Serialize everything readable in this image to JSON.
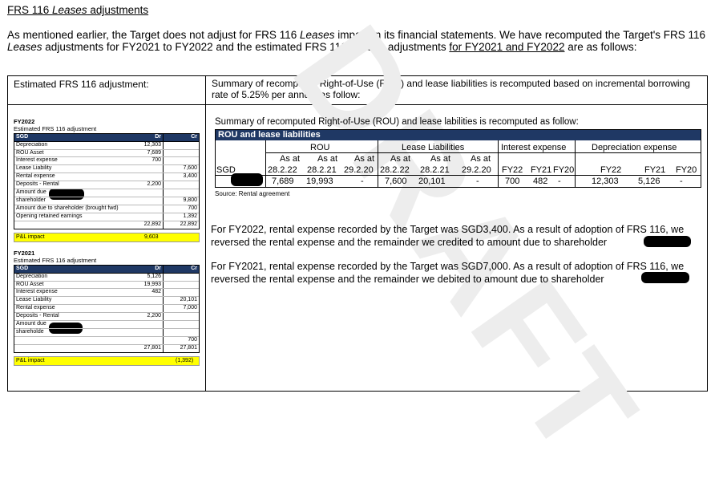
{
  "heading": {
    "prefix": "FRS 116 ",
    "italic": "Leases",
    "suffix": " adjustments"
  },
  "intro": {
    "p1": "As mentioned earlier, the Target does not adjust for FRS 116 ",
    "i1": "Leases",
    "p2": " impact in its financial statements. We have recomputed the Target's FRS 116 ",
    "i2": "Leases",
    "p3": " adjustments for FY2021 to FY2022 and the estimated FRS 116 ",
    "i3": "Leases",
    "p4": " adjustments ",
    "u1": "for FY2021 and FY2022",
    "p5": " are as follows:"
  },
  "left_header": "Estimated FRS 116 adjustment:",
  "right_header": "Summary of recomputed Right-of-Use (ROU) and lease liabilities is recomputed based on incremental borrowing rate of 5.25% per annum as follow:",
  "watermark": "DRAFT",
  "fy2022": {
    "title": "FY2022",
    "subtitle": "Estimated FRS 116 adjustment",
    "header": {
      "label": "SGD",
      "dr": "Dr",
      "cr": "Cr"
    },
    "rows": [
      {
        "label": "Depreciation",
        "dr": "12,303",
        "cr": ""
      },
      {
        "label": "ROU Asset",
        "dr": "7,689",
        "cr": ""
      },
      {
        "label": "Interest expense",
        "dr": "700",
        "cr": ""
      },
      {
        "label": "Lease Liability",
        "dr": "",
        "cr": "7,600"
      },
      {
        "label": "Rental expense",
        "dr": "",
        "cr": "3,400"
      },
      {
        "label": "Deposits - Rental",
        "dr": "2,200",
        "cr": ""
      },
      {
        "label": "Amount due",
        "dr": "",
        "cr": ""
      },
      {
        "label": "shareholder",
        "dr": "",
        "cr": "9,800"
      },
      {
        "label": "Amount due to shareholder (brought fwd)",
        "dr": "",
        "cr": "700"
      },
      {
        "label": "Opening retained earnings",
        "dr": "",
        "cr": "1,392"
      },
      {
        "label": "",
        "dr": "22,892",
        "cr": "22,892"
      }
    ],
    "pl_label": "P&L impact",
    "pl_value": "9,603"
  },
  "fy2021": {
    "title": "FY2021",
    "subtitle": "Estimated FRS 116 adjustment",
    "header": {
      "label": "SGD",
      "dr": "Dr",
      "cr": "Cr"
    },
    "rows": [
      {
        "label": "Depreciation",
        "dr": "5,126",
        "cr": ""
      },
      {
        "label": "ROU Asset",
        "dr": "19,993",
        "cr": ""
      },
      {
        "label": "Interest expense",
        "dr": "482",
        "cr": ""
      },
      {
        "label": "Lease Liability",
        "dr": "",
        "cr": "20,101"
      },
      {
        "label": "Rental expense",
        "dr": "",
        "cr": "7,000"
      },
      {
        "label": "Deposits - Rental",
        "dr": "2,200",
        "cr": ""
      },
      {
        "label": "Amount due",
        "dr": "",
        "cr": ""
      },
      {
        "label": "shareholde",
        "dr": "",
        "cr": ""
      },
      {
        "label": "",
        "dr": "",
        "cr": "700"
      },
      {
        "label": "",
        "dr": "27,801",
        "cr": "27,801"
      }
    ],
    "pl_label": "P&L impact",
    "pl_value": "(1,392)"
  },
  "summary": {
    "title": "Summary of recomputed Right-of-Use (ROU) and lease labilities is recomputed as follow:",
    "band": "ROU and lease liabilities",
    "groups": {
      "rou": "ROU",
      "lease": "Lease Liabilities",
      "interest": "Interest expense",
      "dep": "Depreciation expense"
    },
    "as_at": "As at",
    "dates": [
      "28.2.22",
      "28.2.21",
      "29.2.20"
    ],
    "fy_cols": [
      "FY22",
      "FY21",
      "FY20"
    ],
    "fy_dep": [
      "FY22",
      "FY21",
      "FY20"
    ],
    "row_label": "SGD",
    "rou_vals": [
      "7,689",
      "19,993",
      "-"
    ],
    "lease_vals": [
      "7,600",
      "20,101",
      "-"
    ],
    "int_vals": [
      "700",
      "482",
      "-"
    ],
    "dep_vals": [
      "12,303",
      "5,126",
      "-"
    ],
    "source": "Source: Rental agreement"
  },
  "para1": "For FY2022, rental expense recorded by the Target was SGD3,400. As a result of adoption of FRS 116, we reversed the rental expense and the remainder we credited to amount due to shareholder",
  "para2": "For FY2021, rental expense recorded by the Target was SGD7,000. As a result of adoption of FRS 116, we reversed the rental expense and the remainder we debited to amount due to shareholder"
}
